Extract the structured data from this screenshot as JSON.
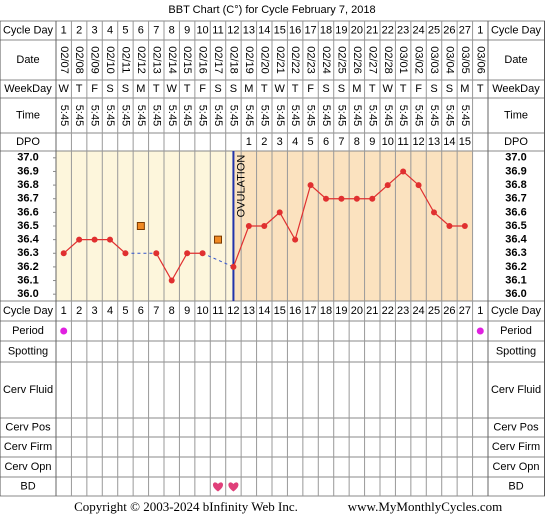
{
  "chart_data": {
    "type": "line",
    "title": "BBT Chart (C°) for Cycle February 7, 2018",
    "row_labels": {
      "cycle_day": "Cycle Day",
      "date": "Date",
      "weekday": "WeekDay",
      "time": "Time",
      "dpo": "DPO",
      "period": "Period",
      "spotting": "Spotting",
      "cerv_fluid": "Cerv Fluid",
      "cerv_pos": "Cerv Pos",
      "cerv_firm": "Cerv Firm",
      "cerv_opn": "Cerv Opn",
      "bd": "BD"
    },
    "cycle_days": [
      1,
      2,
      3,
      4,
      5,
      6,
      7,
      8,
      9,
      10,
      11,
      12,
      13,
      14,
      15,
      16,
      17,
      18,
      19,
      20,
      21,
      22,
      23,
      24,
      25,
      26,
      27,
      1
    ],
    "dates": [
      "02/07",
      "02/08",
      "02/09",
      "02/10",
      "02/11",
      "02/12",
      "02/13",
      "02/14",
      "02/15",
      "02/16",
      "02/17",
      "02/18",
      "02/19",
      "02/20",
      "02/21",
      "02/22",
      "02/23",
      "02/24",
      "02/25",
      "02/26",
      "02/27",
      "02/28",
      "03/01",
      "03/02",
      "03/03",
      "03/04",
      "03/05",
      "03/06"
    ],
    "weekdays": [
      "W",
      "T",
      "F",
      "S",
      "S",
      "M",
      "T",
      "W",
      "T",
      "F",
      "S",
      "S",
      "M",
      "T",
      "W",
      "T",
      "F",
      "S",
      "S",
      "M",
      "T",
      "W",
      "T",
      "F",
      "S",
      "S",
      "M",
      "T"
    ],
    "times": [
      "5:45",
      "5:45",
      "5:45",
      "5:45",
      "5:45",
      "5:45",
      "5:45",
      "5:45",
      "5:45",
      "5:45",
      "5:45",
      "5:45",
      "5:45",
      "5:45",
      "5:45",
      "5:45",
      "5:45",
      "5:45",
      "5:45",
      "5:45",
      "5:45",
      "5:45",
      "5:45",
      "5:45",
      "5:45",
      "5:45",
      "5:45",
      null
    ],
    "dpo": [
      null,
      null,
      null,
      null,
      null,
      null,
      null,
      null,
      null,
      null,
      null,
      null,
      1,
      2,
      3,
      4,
      5,
      6,
      7,
      8,
      9,
      10,
      11,
      12,
      13,
      14,
      15,
      null
    ],
    "ovulation_label": "OVULATION",
    "values": [
      36.3,
      36.4,
      36.4,
      36.4,
      36.3,
      null,
      36.3,
      36.1,
      36.3,
      36.3,
      null,
      36.2,
      36.5,
      36.5,
      36.6,
      36.4,
      36.8,
      36.7,
      36.7,
      36.7,
      36.7,
      36.8,
      36.9,
      36.8,
      36.6,
      36.5,
      36.5,
      null
    ],
    "color": "#e03030",
    "discarded_values": [
      null,
      null,
      null,
      null,
      null,
      36.5,
      null,
      null,
      null,
      null,
      36.4,
      null,
      null,
      null,
      null,
      null,
      null,
      null,
      null,
      null,
      null,
      null,
      null,
      null,
      null,
      null,
      null,
      null
    ],
    "discarded_color": "#f08a24",
    "ylim": [
      35.95,
      37.05
    ],
    "yticks": [
      {
        "value": 37,
        "label": "37.0"
      },
      36.9,
      36.8,
      36.7,
      36.6,
      36.5,
      36.4,
      36.3,
      36.2,
      36.1,
      {
        "value": 36,
        "label": "36.0"
      }
    ],
    "period": [
      true,
      false,
      false,
      false,
      false,
      false,
      false,
      false,
      false,
      false,
      false,
      false,
      false,
      false,
      false,
      false,
      false,
      false,
      false,
      false,
      false,
      false,
      false,
      false,
      false,
      false,
      false,
      true
    ],
    "bd": [
      false,
      false,
      false,
      false,
      false,
      false,
      false,
      false,
      false,
      false,
      true,
      true,
      false,
      false,
      false,
      false,
      false,
      false,
      false,
      false,
      false,
      false,
      false,
      false,
      false,
      false,
      false,
      false
    ],
    "copyright": "Copyright © 2003-2024 bInfinity Web Inc.",
    "website": "www.MyMonthlyCycles.com"
  }
}
